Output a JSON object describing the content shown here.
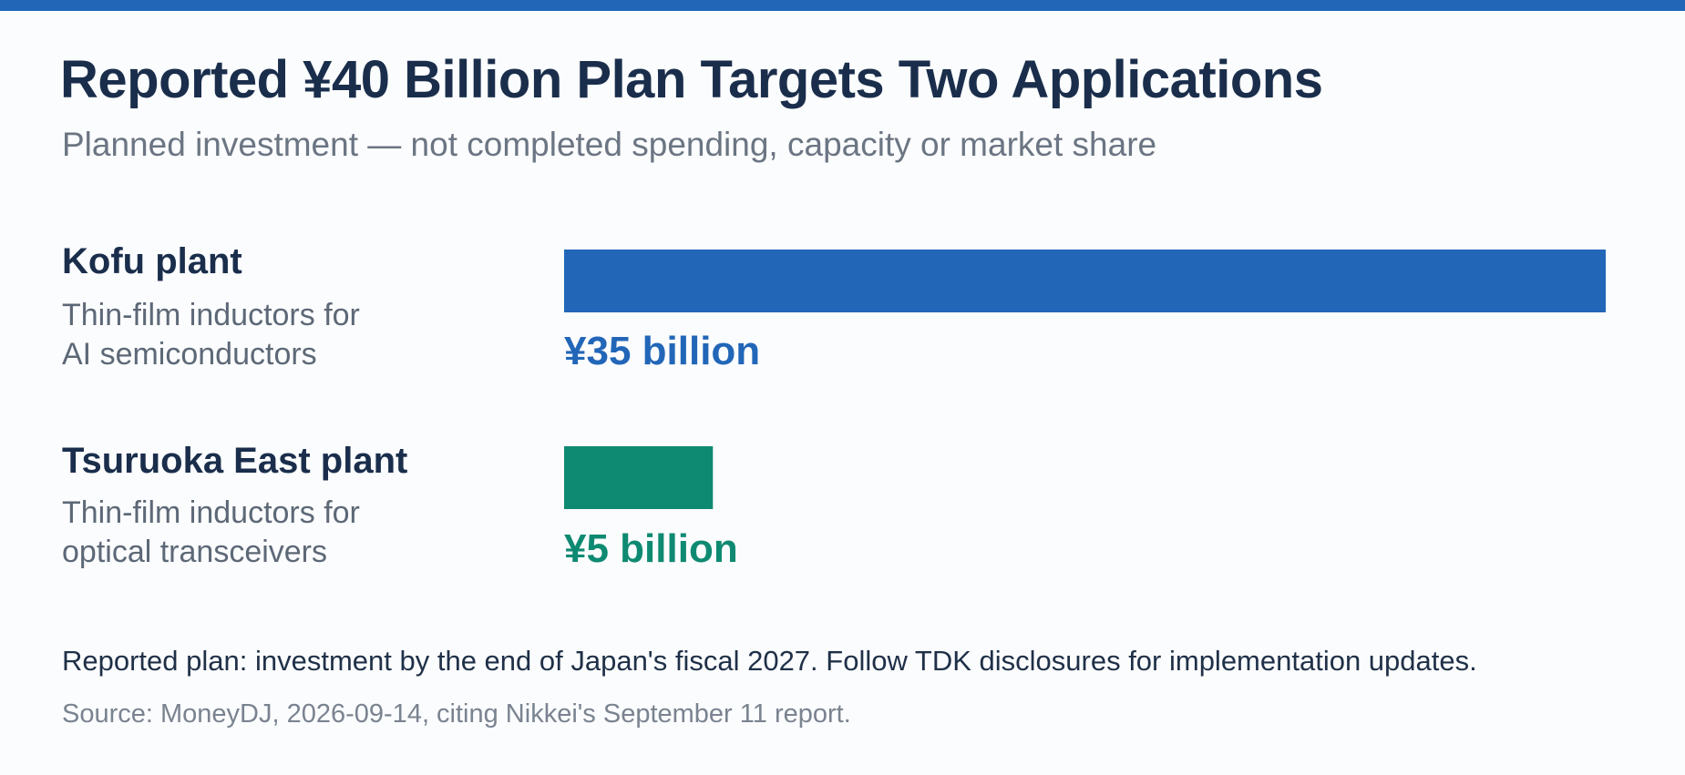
{
  "colors": {
    "accent": "#2266b8",
    "secondary": "#0f8a72"
  },
  "chart_data": {
    "type": "bar",
    "orientation": "horizontal",
    "title": "Reported ¥40 Billion Plan Targets Two Applications",
    "subtitle": "Planned investment — not completed spending, capacity or market share",
    "unit": "¥ billion",
    "categories": [
      "Kofu plant",
      "Tsuruoka East plant"
    ],
    "descriptions": [
      [
        "Thin-film inductors for",
        "AI semiconductors"
      ],
      [
        "Thin-film inductors for",
        "optical transceivers"
      ]
    ],
    "values": [
      35,
      5
    ],
    "value_labels": [
      "¥35 billion",
      "¥5 billion"
    ],
    "series_colors": [
      "#2266b8",
      "#0f8a72"
    ],
    "xlim": [
      0,
      35
    ],
    "grid": false,
    "legend": "none"
  },
  "footer": {
    "note": "Reported plan: investment by the end of Japan's fiscal 2027. Follow TDK disclosures for implementation updates.",
    "source": "Source: MoneyDJ,  2026-09-14, citing Nikkei's September 11 report."
  }
}
